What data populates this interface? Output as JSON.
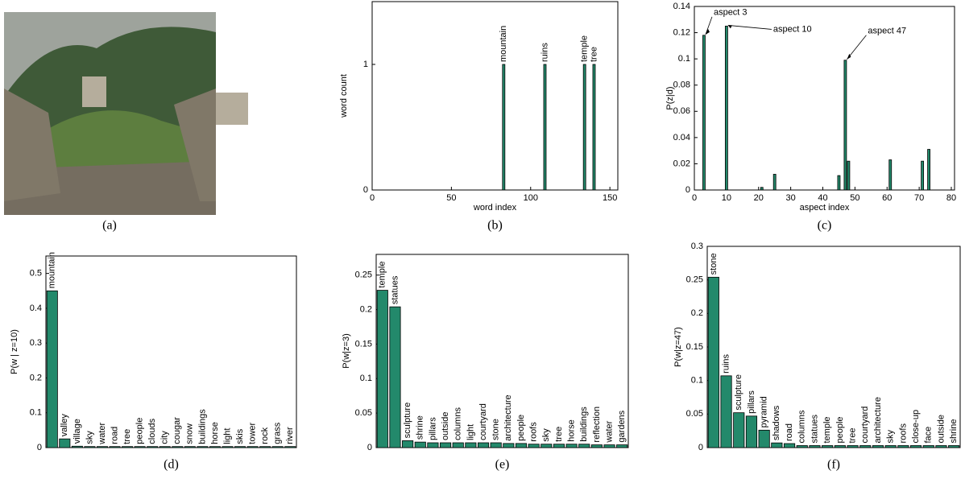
{
  "photo": {
    "caption": "(a)"
  },
  "chart_data": [
    {
      "type": "bar",
      "caption": "(b)",
      "xlabel": "word index",
      "ylabel": "word count",
      "color": "#23896b",
      "x": [
        83,
        109,
        134,
        140
      ],
      "values": [
        1,
        1,
        1,
        1
      ],
      "bar_labels": [
        "mountain",
        "ruins",
        "temple",
        "tree"
      ],
      "xlim": [
        0,
        155
      ],
      "xticks": [
        0,
        50,
        100,
        150
      ],
      "ylim": [
        0,
        1.5
      ],
      "yticks": [
        0,
        1
      ]
    },
    {
      "type": "bar",
      "caption": "(c)",
      "xlabel": "aspect index",
      "ylabel": "P(z|d)",
      "color": "#23896b",
      "x": [
        3,
        10,
        21,
        25,
        45,
        47,
        48,
        61,
        71,
        73
      ],
      "values": [
        0.118,
        0.125,
        0.002,
        0.012,
        0.011,
        0.099,
        0.022,
        0.023,
        0.022,
        0.031
      ],
      "xlim": [
        0,
        81
      ],
      "xticks": [
        0,
        10,
        20,
        30,
        40,
        50,
        60,
        70,
        80
      ],
      "ylim": [
        0,
        0.14
      ],
      "yticks": [
        0,
        0.02,
        0.04,
        0.06,
        0.08,
        0.1,
        0.12,
        0.14
      ],
      "annotations": [
        {
          "text": "aspect 3",
          "x": 3
        },
        {
          "text": "aspect 10",
          "x": 10
        },
        {
          "text": "aspect 47",
          "x": 47
        }
      ]
    },
    {
      "type": "bar",
      "caption": "(d)",
      "ylabel": "P(w | z=10)",
      "color": "#23896b",
      "categories": [
        "mountain",
        "valley",
        "village",
        "sky",
        "water",
        "road",
        "tree",
        "people",
        "clouds",
        "city",
        "cougar",
        "snow",
        "buildings",
        "horse",
        "light",
        "skis",
        "tower",
        "rock",
        "grass",
        "river"
      ],
      "values": [
        0.45,
        0.025,
        0.004,
        0.003,
        0.003,
        0.003,
        0.003,
        0.003,
        0.003,
        0.003,
        0.003,
        0.003,
        0.003,
        0.003,
        0.003,
        0.003,
        0.003,
        0.003,
        0.003,
        0.003
      ],
      "ylim": [
        0,
        0.55
      ],
      "yticks": [
        0,
        0.1,
        0.2,
        0.3,
        0.4,
        0.5
      ]
    },
    {
      "type": "bar",
      "caption": "(e)",
      "ylabel": "P(w|z=3)",
      "color": "#23896b",
      "categories": [
        "temple",
        "statues",
        "sculpture",
        "shrine",
        "pillars",
        "outside",
        "columns",
        "light",
        "courtyard",
        "stone",
        "architecture",
        "people",
        "roofs",
        "sky",
        "tree",
        "horse",
        "buildings",
        "reflection",
        "water",
        "gardens"
      ],
      "values": [
        0.228,
        0.204,
        0.01,
        0.008,
        0.007,
        0.007,
        0.007,
        0.007,
        0.007,
        0.007,
        0.006,
        0.006,
        0.005,
        0.005,
        0.005,
        0.005,
        0.005,
        0.004,
        0.004,
        0.004
      ],
      "ylim": [
        0,
        0.28
      ],
      "yticks": [
        0,
        0.05,
        0.1,
        0.15,
        0.2,
        0.25
      ]
    },
    {
      "type": "bar",
      "caption": "(f)",
      "ylabel": "P(w|z=47)",
      "color": "#23896b",
      "categories": [
        "stone",
        "ruins",
        "sculpture",
        "pillars",
        "pyramid",
        "shadows",
        "road",
        "columns",
        "statues",
        "temple",
        "people",
        "tree",
        "courtyard",
        "architecture",
        "sky",
        "roofs",
        "close-up",
        "face",
        "outside",
        "shrine"
      ],
      "values": [
        0.254,
        0.107,
        0.052,
        0.047,
        0.026,
        0.007,
        0.006,
        0.003,
        0.003,
        0.003,
        0.003,
        0.003,
        0.003,
        0.003,
        0.003,
        0.003,
        0.003,
        0.003,
        0.003,
        0.003
      ],
      "ylim": [
        0,
        0.3
      ],
      "yticks": [
        0,
        0.05,
        0.1,
        0.15,
        0.2,
        0.25,
        0.3
      ]
    }
  ]
}
